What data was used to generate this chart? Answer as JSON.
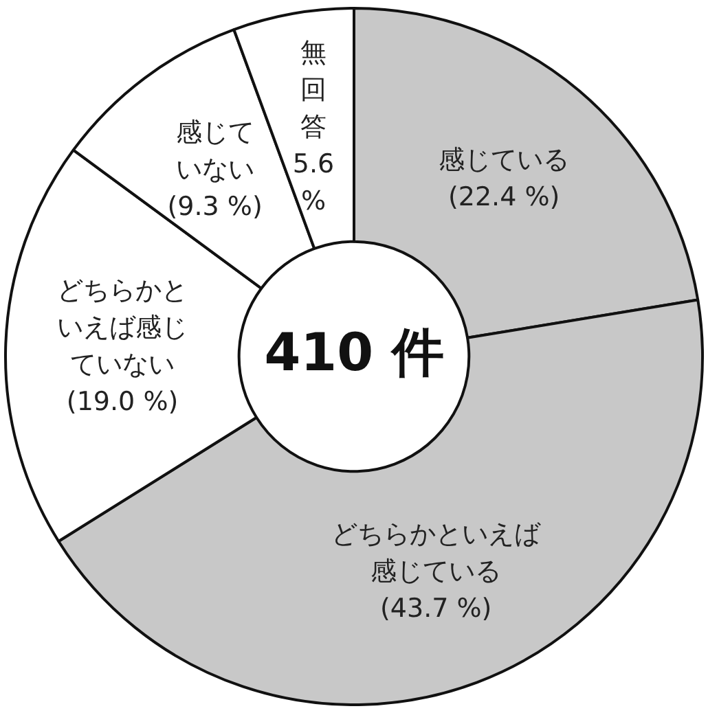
{
  "chart_data": {
    "type": "donut",
    "categories": [
      "感じている",
      "どちらかといえば感じている",
      "どちらかといえば感じていない",
      "感じていない",
      "無回答"
    ],
    "values": [
      22.4,
      43.7,
      19.0,
      9.3,
      5.6
    ],
    "value_labels": [
      "(22.4 %)",
      "(43.7 %)",
      "(19.0 %)",
      "(9.3 %)",
      "5.6\n%"
    ],
    "colors": [
      "#c8c8c8",
      "#c8c8c8",
      "#ffffff",
      "#ffffff",
      "#ffffff"
    ],
    "annotations": [
      "410 件"
    ],
    "legend": false
  }
}
